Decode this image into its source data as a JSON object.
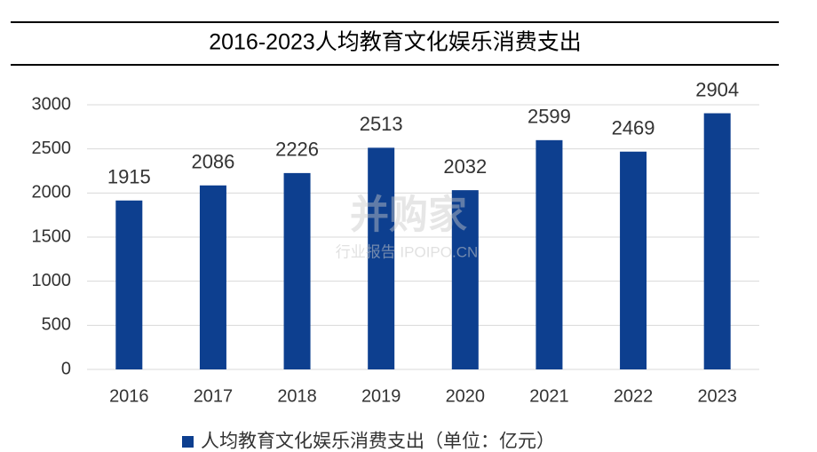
{
  "chart_data": {
    "type": "bar",
    "title": "2016-2023人均教育文化娱乐消费支出",
    "categories": [
      "2016",
      "2017",
      "2018",
      "2019",
      "2020",
      "2021",
      "2022",
      "2023"
    ],
    "series": [
      {
        "name": "人均教育文化娱乐消费支出（单位：亿元）",
        "color": "#0d3f8f",
        "values": [
          1915,
          2086,
          2226,
          2513,
          2032,
          2599,
          2469,
          2904
        ]
      }
    ],
    "ylim": [
      0,
      3000
    ],
    "yticks": [
      0,
      500,
      1000,
      1500,
      2000,
      2500,
      3000
    ],
    "grid": true,
    "legend": "bottom",
    "watermark": "并购家",
    "watermark_subtitle": "行业报告 IPOIPO.CN"
  }
}
